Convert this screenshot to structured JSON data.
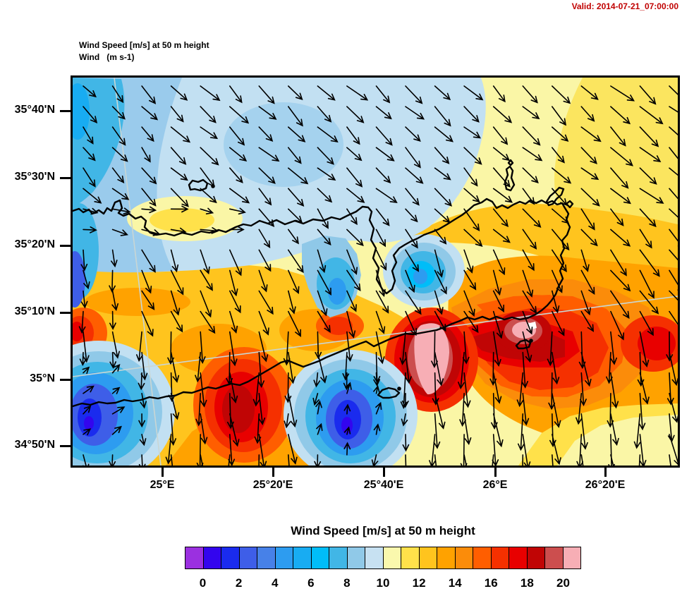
{
  "header": {
    "valid_label": "Valid: 2014-07-21_07:00:00",
    "valid_color": "#c00000"
  },
  "plot": {
    "title_line1": "Wind Speed [m/s] at 50 m height",
    "title_line2": "Wind   (m s-1)"
  },
  "axes": {
    "lat_ticks": [
      "35°40'N",
      "35°30'N",
      "35°20'N",
      "35°10'N",
      "35°N",
      "34°50'N"
    ],
    "lon_ticks": [
      "25°E",
      "25°20'E",
      "25°40'E",
      "26°E",
      "26°20'E"
    ]
  },
  "colorbar": {
    "title": "Wind Speed [m/s] at 50 m height",
    "labels": [
      "0",
      "2",
      "4",
      "6",
      "8",
      "10",
      "12",
      "14",
      "16",
      "18",
      "20"
    ],
    "colors": [
      "#9B30E0",
      "#3305EE",
      "#1A2BEE",
      "#3E5EE8",
      "#4781E8",
      "#2D9CF0",
      "#18ACF2",
      "#00BDF8",
      "#41B6E6",
      "#90C9E8",
      "#C7E1F2",
      "#FAF8AD",
      "#FFE14A",
      "#FFC41E",
      "#FFA200",
      "#FB8C0A",
      "#FF5E00",
      "#F53000",
      "#E80000",
      "#C00505",
      "#CC4E4E",
      "#F7AEB5"
    ]
  },
  "chart_data": {
    "type": "heatmap",
    "title": "Wind Speed [m/s] at 50 m height",
    "subtitle": "Wind   (m s-1)",
    "valid_time": "2014-07-21_07:00:00",
    "variable": "wind speed at 50 m height",
    "units": "m/s",
    "x_axis": {
      "kind": "longitude",
      "ticks": [
        "25°E",
        "25°20'E",
        "25°40'E",
        "26°E",
        "26°20'E"
      ]
    },
    "y_axis": {
      "kind": "latitude",
      "ticks": [
        "35°40'N",
        "35°30'N",
        "35°20'N",
        "35°10'N",
        "35°N",
        "34°50'N"
      ]
    },
    "colorbar": {
      "tick_labels": [
        0,
        2,
        4,
        6,
        8,
        10,
        12,
        14,
        16,
        18,
        20
      ],
      "segment_step_mps": 1,
      "first_segment": "below 0",
      "last_segment": "above 20",
      "colors": [
        "#9B30E0",
        "#3305EE",
        "#1A2BEE",
        "#3E5EE8",
        "#4781E8",
        "#2D9CF0",
        "#18ACF2",
        "#00BDF8",
        "#41B6E6",
        "#90C9E8",
        "#C7E1F2",
        "#FAF8AD",
        "#FFE14A",
        "#FFC41E",
        "#FFA200",
        "#FB8C0A",
        "#FF5E00",
        "#F53000",
        "#E80000",
        "#C00505",
        "#CC4E4E",
        "#F7AEB5"
      ],
      "legend_position": "bottom"
    },
    "vector_overlay": {
      "glyph": "arrow",
      "meaning": "wind direction and relative speed",
      "predominant_direction": "flow from NW–N (arrows point SE over the north, S over the south)"
    },
    "geography": "Crete (Greece) and surrounding Aegean/Libyan Sea, coastlines drawn in black",
    "regions": [
      {
        "area": "northwest quadrant, sea north of Crete",
        "speed_mps": "4-9"
      },
      {
        "area": "top-center sea",
        "speed_mps": "8-10"
      },
      {
        "area": "northeast quadrant",
        "speed_mps": "10-13"
      },
      {
        "area": "west-center band across island",
        "speed_mps": "12-15"
      },
      {
        "area": "south and southeast of eastern Crete",
        "speed_mps": "16-20+",
        "note": "maxima above 20 m/s shown as pink cores"
      },
      {
        "area": "south-central offshore patch (west)",
        "speed_mps": "16-19"
      },
      {
        "area": "lee/calm zones south of Crete, bottom-left and bottom-center",
        "speed_mps": "0-4"
      },
      {
        "area": "small calm pocket in Mirabello Bay area",
        "speed_mps": "5-8"
      }
    ]
  }
}
